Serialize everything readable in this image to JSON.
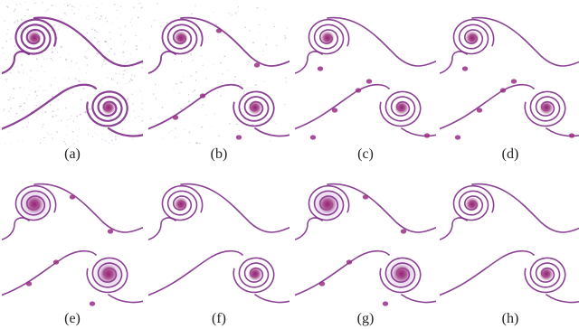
{
  "panels": [
    {
      "label": "(a)",
      "style": "noisy"
    },
    {
      "label": "(b)",
      "style": "wavy"
    },
    {
      "label": "(c)",
      "style": "clean-blobs"
    },
    {
      "label": "(d)",
      "style": "clean-blobs"
    },
    {
      "label": "(e)",
      "style": "diffuse"
    },
    {
      "label": "(f)",
      "style": "clean"
    },
    {
      "label": "(g)",
      "style": "diffuse"
    },
    {
      "label": "(h)",
      "style": "clean"
    }
  ],
  "colors": {
    "stroke": "#7e2d88",
    "core": "#9a2e86",
    "halo": "#c9a8d8",
    "noise": "#b9a3c9"
  }
}
